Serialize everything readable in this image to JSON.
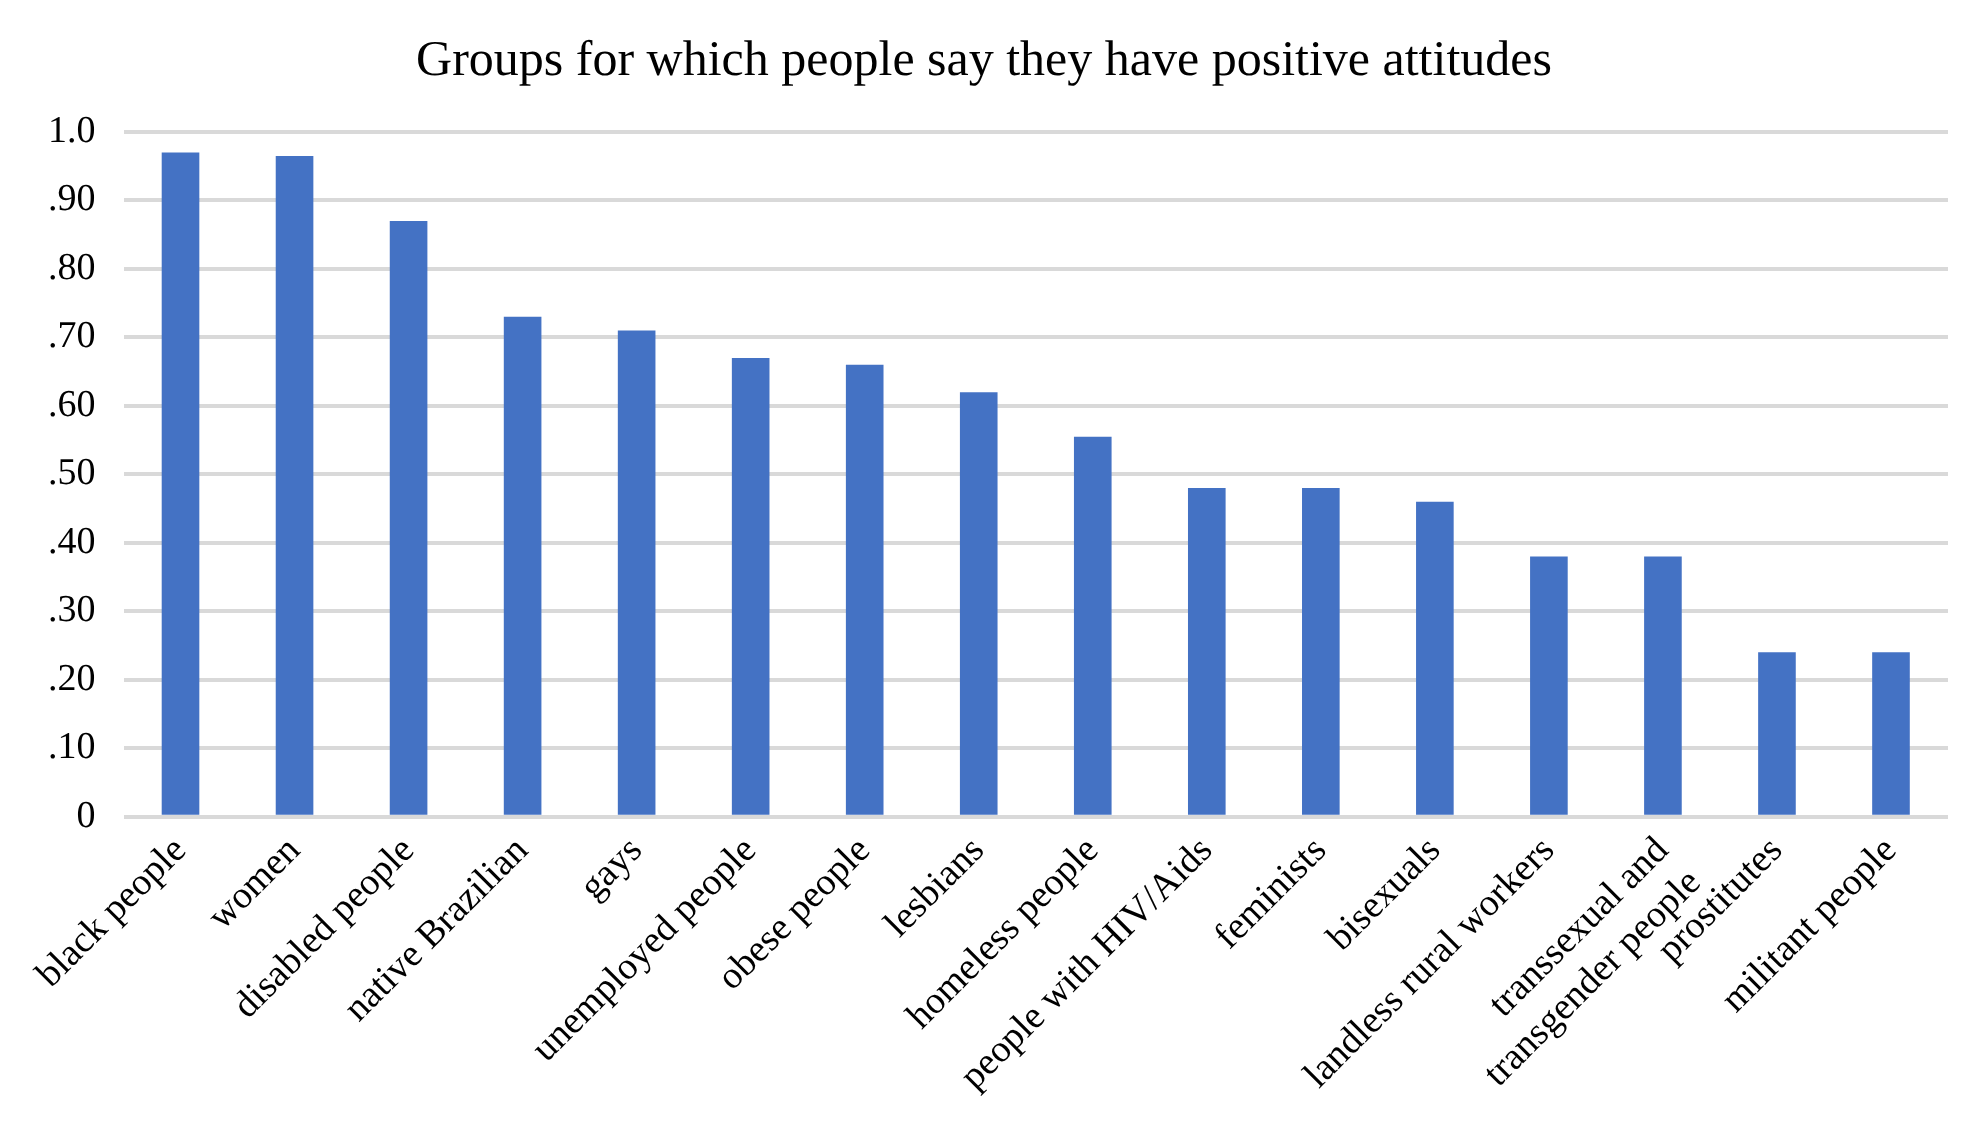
{
  "chart_data": {
    "type": "bar",
    "title": "Groups for which people say they have positive attitudes",
    "categories": [
      "black people",
      "women",
      "disabled people",
      "native Brazilian",
      "gays",
      "unemployed people",
      "obese people",
      "lesbians",
      "homeless people",
      "people with HIV/Aids",
      "feminists",
      "bisexuals",
      "landless rural workers",
      "transsexual and transgender people",
      "prostitutes",
      "militant people"
    ],
    "values": [
      0.97,
      0.965,
      0.87,
      0.73,
      0.71,
      0.67,
      0.66,
      0.62,
      0.555,
      0.48,
      0.48,
      0.46,
      0.38,
      0.38,
      0.24,
      0.24
    ],
    "color": "#4472c4",
    "ylim": [
      0,
      1
    ],
    "yticks": [
      {
        "value": 0,
        "label": "0"
      },
      {
        "value": 0.1,
        "label": ".10"
      },
      {
        "value": 0.2,
        "label": ".20"
      },
      {
        "value": 0.3,
        "label": ".30"
      },
      {
        "value": 0.4,
        "label": ".40"
      },
      {
        "value": 0.5,
        "label": ".50"
      },
      {
        "value": 0.6,
        "label": ".60"
      },
      {
        "value": 0.7,
        "label": ".70"
      },
      {
        "value": 0.8,
        "label": ".80"
      },
      {
        "value": 0.9,
        "label": ".90"
      },
      {
        "value": 1,
        "label": "1.0"
      }
    ],
    "grid": "y",
    "legend": false
  }
}
